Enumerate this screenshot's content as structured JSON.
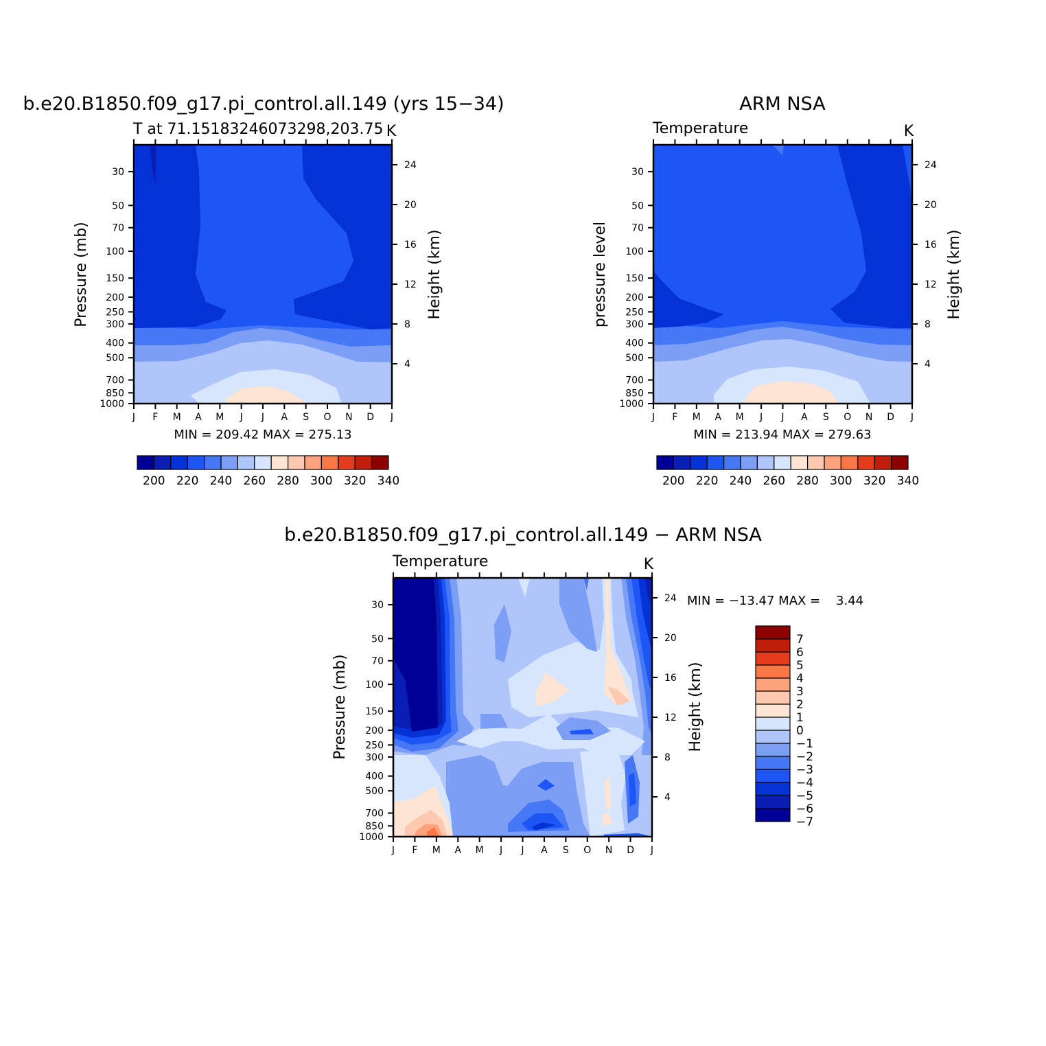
{
  "page": {
    "top_left_title": "b.e20.B1850.f09_g17.pi_control.all.149 (yrs 15−34)",
    "top_right_title": "ARM NSA",
    "bottom_title": "b.e20.B1850.f09_g17.pi_control.all.149 − ARM NSA"
  },
  "colors": {
    "temperature_scale": [
      "#000096",
      "#0a1eb4",
      "#0532d7",
      "#1e55f5",
      "#4678f5",
      "#7d9ef5",
      "#b0c6fa",
      "#d7e6fc",
      "#fde4d3",
      "#fcc8af",
      "#fca37d",
      "#fa7846",
      "#e63c1e",
      "#be1e0a",
      "#8c0000"
    ],
    "difference_scale": [
      "#000096",
      "#0a1eb4",
      "#0532d7",
      "#1e55f5",
      "#4678f5",
      "#7d9ef5",
      "#b0c6fa",
      "#d7e6fc",
      "#fde4d3",
      "#fcc8af",
      "#fca37d",
      "#fa7846",
      "#e63c1e",
      "#be1e0a",
      "#8c0000"
    ]
  },
  "chart_data": [
    {
      "id": "panel-model",
      "type": "heatmap",
      "subtitle": "T at 71.15183246073298,203.75",
      "units": "K",
      "ylabel": "Pressure (mb)",
      "ylabel_right": "Height (km)",
      "x_ticks": [
        "J",
        "F",
        "M",
        "A",
        "M",
        "J",
        "J",
        "A",
        "S",
        "O",
        "N",
        "D",
        "J"
      ],
      "y_ticks": [
        30,
        50,
        70,
        100,
        150,
        200,
        250,
        300,
        400,
        500,
        700,
        850,
        1000
      ],
      "height_ticks": [
        24,
        20,
        16,
        12,
        8,
        4
      ],
      "stats_text": "MIN = 209.42 MAX = 275.13",
      "min": 209.42,
      "max": 275.13,
      "levels": [
        200,
        210,
        220,
        230,
        240,
        250,
        260,
        270,
        280,
        290,
        300,
        310,
        320,
        330,
        340
      ],
      "colorbar_labels": [
        "200",
        "220",
        "240",
        "260",
        "280",
        "300",
        "320",
        "340"
      ]
    },
    {
      "id": "panel-obs",
      "type": "heatmap",
      "subtitle": "Temperature",
      "units": "K",
      "ylabel": "pressure level",
      "ylabel_right": "Height (km)",
      "x_ticks": [
        "J",
        "F",
        "M",
        "A",
        "M",
        "J",
        "J",
        "A",
        "S",
        "O",
        "N",
        "D",
        "J"
      ],
      "y_ticks": [
        30,
        50,
        70,
        100,
        150,
        200,
        250,
        300,
        400,
        500,
        700,
        850,
        1000
      ],
      "height_ticks": [
        24,
        20,
        16,
        12,
        8,
        4
      ],
      "stats_text": "MIN = 213.94 MAX = 279.63",
      "min": 213.94,
      "max": 279.63,
      "levels": [
        200,
        210,
        220,
        230,
        240,
        250,
        260,
        270,
        280,
        290,
        300,
        310,
        320,
        330,
        340
      ],
      "colorbar_labels": [
        "200",
        "220",
        "240",
        "260",
        "280",
        "300",
        "320",
        "340"
      ]
    },
    {
      "id": "panel-diff",
      "type": "heatmap",
      "subtitle": "Temperature",
      "units": "K",
      "ylabel": "Pressure (mb)",
      "ylabel_right": "Height (km)",
      "x_ticks": [
        "J",
        "F",
        "M",
        "A",
        "M",
        "J",
        "J",
        "A",
        "S",
        "O",
        "N",
        "D",
        "J"
      ],
      "y_ticks": [
        30,
        50,
        70,
        100,
        150,
        200,
        250,
        300,
        400,
        500,
        700,
        850,
        1000
      ],
      "height_ticks": [
        24,
        20,
        16,
        12,
        8,
        4
      ],
      "stats_text": "MIN = −13.47 MAX =    3.44",
      "min": -13.47,
      "max": 3.44,
      "colorbar_labels": [
        "7",
        "6",
        "5",
        "4",
        "3",
        "2",
        "1",
        "0",
        "−1",
        "−2",
        "−3",
        "−4",
        "−5",
        "−6",
        "−7"
      ]
    }
  ]
}
